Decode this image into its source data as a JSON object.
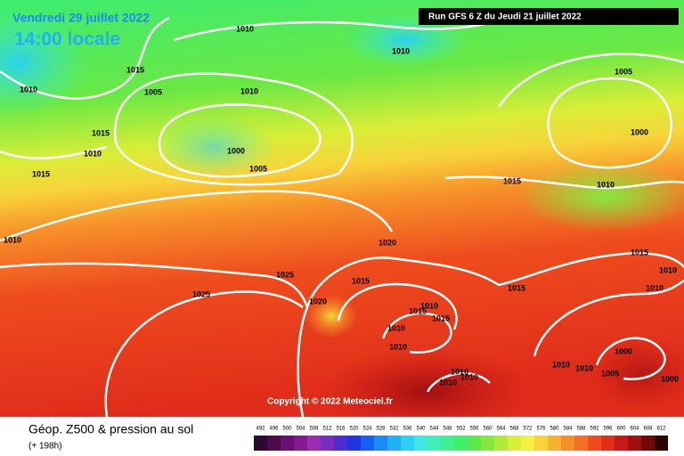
{
  "header": {
    "date": "Vendredi 29 juillet 2022",
    "time": "14:00 locale",
    "run": "Run GFS 6 Z du Jeudi 21 juillet 2022"
  },
  "copyright": "Copyright © 2022 Meteociel.fr",
  "footer": {
    "title": "Géop. Z500 & pression au sol",
    "lead": "(+ 198h)"
  },
  "isobar_labels": [
    "1010",
    "1010",
    "1015",
    "1005",
    "1010",
    "1010",
    "1005",
    "1015",
    "1010",
    "1000",
    "1005",
    "1000",
    "1015",
    "1015",
    "1010",
    "1010",
    "1020",
    "1015",
    "1025",
    "1015",
    "1025",
    "1015",
    "1020",
    "1015",
    "1010",
    "1015",
    "1010",
    "1010",
    "1010",
    "1010",
    "1000",
    "1010",
    "1010",
    "1005",
    "1000",
    "1010",
    "1010",
    "1010"
  ],
  "scale": {
    "values": [
      492,
      496,
      500,
      504,
      508,
      512,
      516,
      520,
      524,
      528,
      532,
      536,
      540,
      544,
      548,
      552,
      556,
      560,
      564,
      568,
      572,
      576,
      580,
      584,
      588,
      592,
      596,
      600,
      604,
      608,
      612
    ],
    "colors": [
      "#2a0a2e",
      "#4b0b4a",
      "#6a1070",
      "#851a8f",
      "#9c2cb0",
      "#7a2bc0",
      "#4b2dd0",
      "#1f35e0",
      "#1660ef",
      "#1a8af5",
      "#1fb0f5",
      "#2dd0f0",
      "#3ee8e0",
      "#40f0b8",
      "#40f090",
      "#40ee68",
      "#5ae84a",
      "#86e83e",
      "#b0ea38",
      "#d8ee38",
      "#f5f040",
      "#f8d43a",
      "#f8b232",
      "#f7902a",
      "#f46e24",
      "#ee4c1e",
      "#e02c1a",
      "#c81818",
      "#a01010",
      "#700808",
      "#2a0202"
    ]
  }
}
